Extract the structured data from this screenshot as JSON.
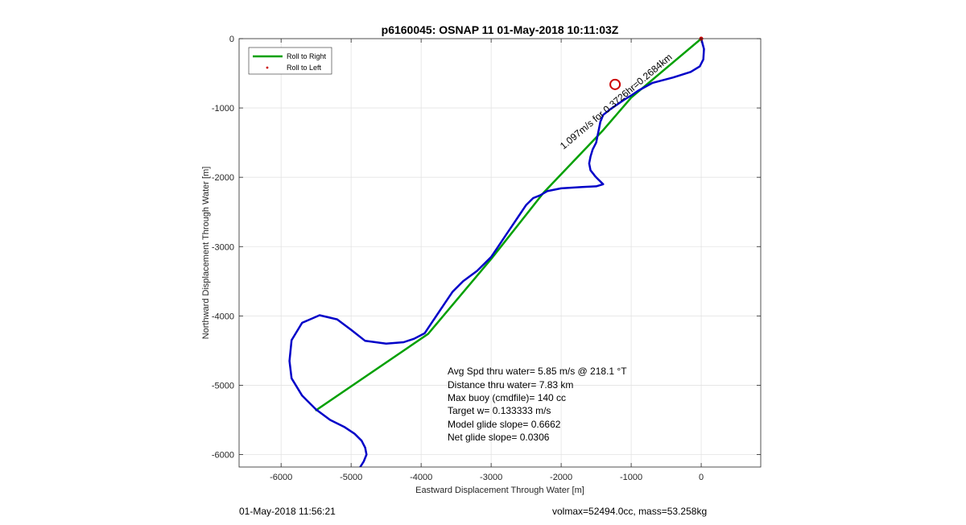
{
  "chart_data": {
    "type": "line",
    "title": "p6160045: OSNAP 11 01-May-2018 10:11:03Z",
    "xlabel": "Eastward Displacement Through Water [m]",
    "ylabel": "Northward Displacement Through Water [m]",
    "xlim": [
      -6600,
      850
    ],
    "ylim": [
      -6180,
      0
    ],
    "xticks": [
      -6000,
      -5000,
      -4000,
      -3000,
      -2000,
      -1000,
      0
    ],
    "yticks": [
      0,
      -1000,
      -2000,
      -3000,
      -4000,
      -5000,
      -6000
    ],
    "grid": true,
    "legend_position": "top-left",
    "legend": [
      "Roll to Right",
      "Roll to Left"
    ],
    "series": [
      {
        "name": "Roll to Right",
        "color": "#00a000",
        "x": [
          0,
          -1000,
          -1400,
          -2250,
          -3000,
          -3900,
          -5500
        ],
        "y": [
          0,
          -850,
          -1320,
          -2220,
          -3180,
          -4260,
          -5360
        ]
      },
      {
        "color": "#0000c8",
        "x": [
          0,
          40,
          30,
          -20,
          -150,
          -400,
          -700,
          -900,
          -1000,
          -1100,
          -1200,
          -1300,
          -1400,
          -1440,
          -1460,
          -1480,
          -1500,
          -1550,
          -1580,
          -1600,
          -1580,
          -1540,
          -1520,
          -1500,
          -1450,
          -1400,
          -1500,
          -1700,
          -2000,
          -2200,
          -2300,
          -2400,
          -2500,
          -2600,
          -2700,
          -2800,
          -2900,
          -3000,
          -3100,
          -3200,
          -3400,
          -3550,
          -3650,
          -3750,
          -3850,
          -3950,
          -4100,
          -4250,
          -4500,
          -4800,
          -5000,
          -5200,
          -5450,
          -5700,
          -5850,
          -5880,
          -5850,
          -5700,
          -5500,
          -5300,
          -5100,
          -4950,
          -4850,
          -4800,
          -4780,
          -4820,
          -4870,
          -4920
        ],
        "y": [
          0,
          -150,
          -300,
          -400,
          -480,
          -560,
          -640,
          -750,
          -820,
          -880,
          -950,
          -1020,
          -1100,
          -1200,
          -1300,
          -1400,
          -1500,
          -1600,
          -1700,
          -1800,
          -1900,
          -1950,
          -1980,
          -2000,
          -2050,
          -2100,
          -2130,
          -2140,
          -2160,
          -2200,
          -2260,
          -2300,
          -2400,
          -2550,
          -2700,
          -2850,
          -3000,
          -3150,
          -3250,
          -3350,
          -3500,
          -3650,
          -3800,
          -3950,
          -4100,
          -4250,
          -4330,
          -4380,
          -4400,
          -4360,
          -4200,
          -4050,
          -3990,
          -4100,
          -4350,
          -4650,
          -4900,
          -5150,
          -5350,
          -5500,
          -5600,
          -5700,
          -5800,
          -5900,
          -6000,
          -6100,
          -6180,
          -6230
        ]
      }
    ],
    "start_marker": {
      "x": -1230,
      "y": -660,
      "color": "#cc0000"
    },
    "path_label": "1.097m/s for 0.3726hr=0.2684km",
    "text_lines": [
      "Avg Spd thru water=  5.85 m/s @ 218.1 °T",
      "Distance thru water=  7.83 km",
      "Max buoy (cmdfile)= 140 cc",
      "Target w= 0.133333 m/s",
      "Model glide slope= 0.6662",
      "Net glide slope= 0.0306"
    ]
  },
  "footer": {
    "left": "01-May-2018 11:56:21",
    "right": "volmax=52494.0cc, mass=53.258kg"
  }
}
